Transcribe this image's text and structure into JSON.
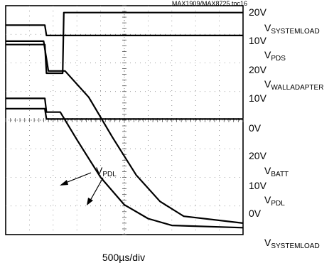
{
  "figure_tag": "MAX1909/MAX8725 toc16",
  "time_label": "500µs/div",
  "scale_labels": [
    {
      "id": "s1",
      "text": "20V"
    },
    {
      "id": "s2",
      "text": "10V"
    },
    {
      "id": "s3",
      "text": "20V"
    },
    {
      "id": "s4",
      "text": "10V"
    },
    {
      "id": "s5",
      "text": "0V"
    },
    {
      "id": "s6",
      "text": "20V"
    },
    {
      "id": "s7",
      "text": "10V"
    },
    {
      "id": "s8",
      "text": "0V"
    }
  ],
  "channel_labels": [
    {
      "id": "c1",
      "main": "V",
      "sub": "SYSTEMLOAD"
    },
    {
      "id": "c2",
      "main": "V",
      "sub": "PDS"
    },
    {
      "id": "c3",
      "main": "V",
      "sub": "WALLADAPTER"
    },
    {
      "id": "c4",
      "main": "V",
      "sub": "BATT"
    },
    {
      "id": "c5",
      "main": "V",
      "sub": "PDL"
    },
    {
      "id": "c6",
      "main": "V",
      "sub": "SYSTEMLOAD"
    }
  ],
  "annotation": {
    "main": "V",
    "sub": "PDL"
  },
  "chart_data": {
    "type": "line",
    "x_divisions": 10,
    "y_divisions": 8,
    "x_per_division": "500µs",
    "grid": true,
    "series": [
      {
        "name": "VSYSTEMLOAD",
        "x_div": [
          0,
          1.65,
          1.72,
          2.4,
          10
        ],
        "values": [
          18.3,
          18.3,
          17.4,
          17.4,
          17.4
        ]
      },
      {
        "name": "VPDS",
        "x_div": [
          0,
          1.65,
          1.72,
          2.4,
          2.45,
          10
        ],
        "values": [
          16.6,
          16.6,
          14.1,
          14.1,
          19.4,
          19.4
        ]
      },
      {
        "name": "VWALLADAPTER",
        "x_div": [
          0,
          1.6,
          1.8,
          2.5,
          3.5,
          4.5,
          5.5,
          6.5,
          7.5,
          10
        ],
        "values": [
          16.9,
          16.9,
          14.3,
          14.3,
          12.0,
          8.5,
          5.2,
          2.9,
          1.6,
          1.0
        ]
      },
      {
        "name": "VBATT",
        "x_div": [
          0,
          1.65,
          1.72,
          10
        ],
        "values": [
          11.0,
          11.0,
          10.1,
          10.1
        ]
      },
      {
        "name": "VPDL",
        "x_div": [
          0,
          1.65,
          1.72,
          2.3,
          3.0,
          4.0,
          5.0,
          6.0,
          7.0,
          10
        ],
        "values": [
          11.9,
          11.9,
          10.7,
          10.7,
          8.3,
          5.0,
          2.6,
          1.4,
          0.8,
          0.6
        ]
      }
    ]
  }
}
